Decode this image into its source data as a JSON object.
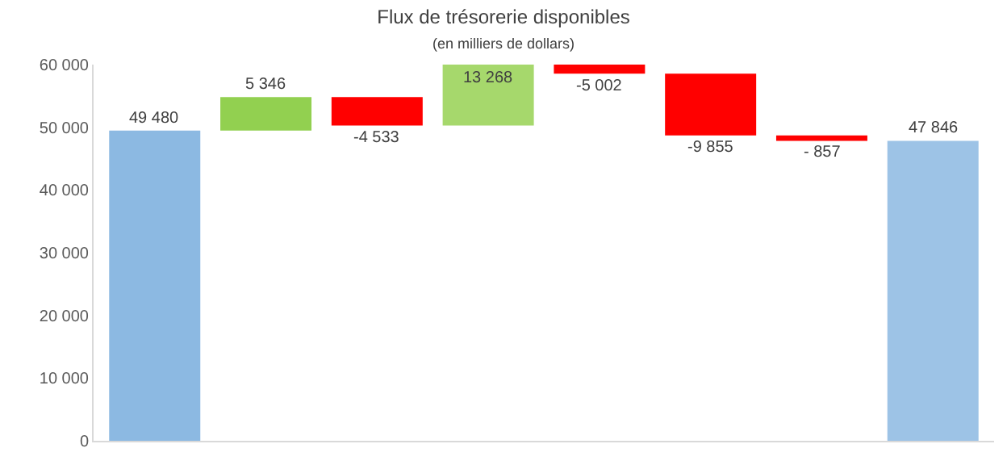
{
  "chart_data": {
    "type": "bar",
    "title": "Flux de trésorerie disponibles",
    "subtitle": "(en milliers de dollars)",
    "categories": [
      null,
      null,
      null,
      null,
      null,
      null,
      null,
      null
    ],
    "values": [
      49480,
      5346,
      -4533,
      13268,
      -5002,
      -9855,
      -857,
      47846
    ],
    "base": [
      0,
      49480,
      54826,
      50293,
      63561,
      58559,
      48704,
      0
    ],
    "colors": [
      "#8cb9e2",
      "#92d050",
      "#ff0000",
      "#a6d86c",
      "#ff0000",
      "#ff0000",
      "#ff0000",
      "#9dc3e6"
    ],
    "value_labels": [
      "49 480",
      "5 346",
      "-4 533",
      "13 268",
      "-5 002",
      "-9 855",
      "- 857",
      "47 846"
    ],
    "ylim": [
      0,
      60000
    ],
    "yticks": [
      {
        "value": 0,
        "label": "0"
      },
      {
        "value": 10000,
        "label": "10 000"
      },
      {
        "value": 20000,
        "label": "20 000"
      },
      {
        "value": 30000,
        "label": "30 000"
      },
      {
        "value": 40000,
        "label": "40 000"
      },
      {
        "value": 50000,
        "label": "50 000"
      },
      {
        "value": 60000,
        "label": "60 000"
      }
    ],
    "grid": false
  }
}
